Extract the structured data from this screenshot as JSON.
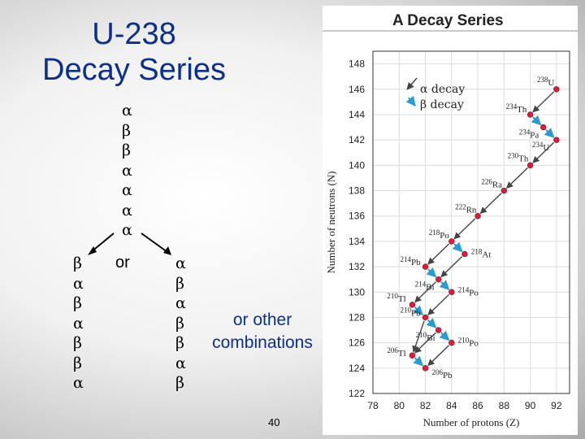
{
  "slide": {
    "title_line1": "U-238",
    "title_line2": "Decay Series",
    "main_sequence": [
      "α",
      "β",
      "β",
      "α",
      "α",
      "α",
      "α"
    ],
    "left_branch": [
      "β",
      "α",
      "β",
      "α",
      "β",
      "β",
      "α"
    ],
    "middle_label": "or",
    "right_branch": [
      "α",
      "β",
      "α",
      "β",
      "β",
      "α",
      "β"
    ],
    "other_line1": "or other",
    "other_line2": "combinations",
    "page_number": "40",
    "colors": {
      "title": "#0b2f8a",
      "alpha_arrow": "#444444",
      "beta_arrow": "#2a9bd1",
      "nuclide_dot": "#d81e3a"
    }
  },
  "chart_data": {
    "type": "scatter",
    "title": "A Decay Series",
    "xlabel": "Number of protons (Z)",
    "ylabel": "Number of neutrons (N)",
    "xlim": [
      78,
      93
    ],
    "ylim": [
      122,
      149
    ],
    "xticks": [
      "78",
      "80",
      "82",
      "84",
      "86",
      "88",
      "90",
      "92"
    ],
    "yticks": [
      "122",
      "124",
      "126",
      "128",
      "130",
      "132",
      "134",
      "136",
      "138",
      "140",
      "142",
      "144",
      "146",
      "148"
    ],
    "legend": {
      "alpha_label": "α decay",
      "beta_label": "β decay",
      "position": "top-left"
    },
    "nuclides": [
      {
        "label": "238U",
        "mass": "238",
        "el": "U",
        "z": 92,
        "n": 146
      },
      {
        "label": "234Th",
        "mass": "234",
        "el": "Th",
        "z": 90,
        "n": 144
      },
      {
        "label": "234Pa",
        "mass": "234",
        "el": "Pa",
        "z": 91,
        "n": 143
      },
      {
        "label": "234U",
        "mass": "234",
        "el": "U",
        "z": 92,
        "n": 142
      },
      {
        "label": "230Th",
        "mass": "230",
        "el": "Th",
        "z": 90,
        "n": 140
      },
      {
        "label": "226Ra",
        "mass": "226",
        "el": "Ra",
        "z": 88,
        "n": 138
      },
      {
        "label": "222Rn",
        "mass": "222",
        "el": "Rn",
        "z": 86,
        "n": 136
      },
      {
        "label": "218Po",
        "mass": "218",
        "el": "Po",
        "z": 84,
        "n": 134
      },
      {
        "label": "218At",
        "mass": "218",
        "el": "At",
        "z": 85,
        "n": 133
      },
      {
        "label": "214Pb",
        "mass": "214",
        "el": "Pb",
        "z": 82,
        "n": 132
      },
      {
        "label": "214Bi",
        "mass": "214",
        "el": "Bi",
        "z": 83,
        "n": 131
      },
      {
        "label": "214Po",
        "mass": "214",
        "el": "Po",
        "z": 84,
        "n": 130
      },
      {
        "label": "210Tl",
        "mass": "210",
        "el": "Tl",
        "z": 81,
        "n": 129
      },
      {
        "label": "210Pb",
        "mass": "210",
        "el": "Pb",
        "z": 82,
        "n": 128
      },
      {
        "label": "210Bi",
        "mass": "210",
        "el": "Bi",
        "z": 83,
        "n": 127
      },
      {
        "label": "210Po",
        "mass": "210",
        "el": "Po",
        "z": 84,
        "n": 126
      },
      {
        "label": "206Tl",
        "mass": "206",
        "el": "Tl",
        "z": 81,
        "n": 125
      },
      {
        "label": "206Pb",
        "mass": "206",
        "el": "Pb",
        "z": 82,
        "n": 124
      }
    ],
    "decays": [
      {
        "from": "238U",
        "to": "234Th",
        "mode": "alpha"
      },
      {
        "from": "234Th",
        "to": "234Pa",
        "mode": "beta"
      },
      {
        "from": "234Pa",
        "to": "234U",
        "mode": "beta"
      },
      {
        "from": "234U",
        "to": "230Th",
        "mode": "alpha"
      },
      {
        "from": "230Th",
        "to": "226Ra",
        "mode": "alpha"
      },
      {
        "from": "226Ra",
        "to": "222Rn",
        "mode": "alpha"
      },
      {
        "from": "222Rn",
        "to": "218Po",
        "mode": "alpha"
      },
      {
        "from": "218Po",
        "to": "218At",
        "mode": "beta"
      },
      {
        "from": "218Po",
        "to": "214Pb",
        "mode": "alpha"
      },
      {
        "from": "218At",
        "to": "214Bi",
        "mode": "alpha"
      },
      {
        "from": "214Pb",
        "to": "214Bi",
        "mode": "beta"
      },
      {
        "from": "214Bi",
        "to": "214Po",
        "mode": "beta"
      },
      {
        "from": "214Bi",
        "to": "210Tl",
        "mode": "alpha"
      },
      {
        "from": "214Po",
        "to": "210Pb",
        "mode": "alpha"
      },
      {
        "from": "210Tl",
        "to": "210Pb",
        "mode": "beta"
      },
      {
        "from": "210Pb",
        "to": "210Bi",
        "mode": "beta"
      },
      {
        "from": "210Pb",
        "to": "206Tl",
        "mode": "alpha"
      },
      {
        "from": "210Bi",
        "to": "210Po",
        "mode": "beta"
      },
      {
        "from": "210Bi",
        "to": "206Tl",
        "mode": "alpha"
      },
      {
        "from": "210Po",
        "to": "206Pb",
        "mode": "alpha"
      },
      {
        "from": "206Tl",
        "to": "206Pb",
        "mode": "beta"
      }
    ]
  }
}
